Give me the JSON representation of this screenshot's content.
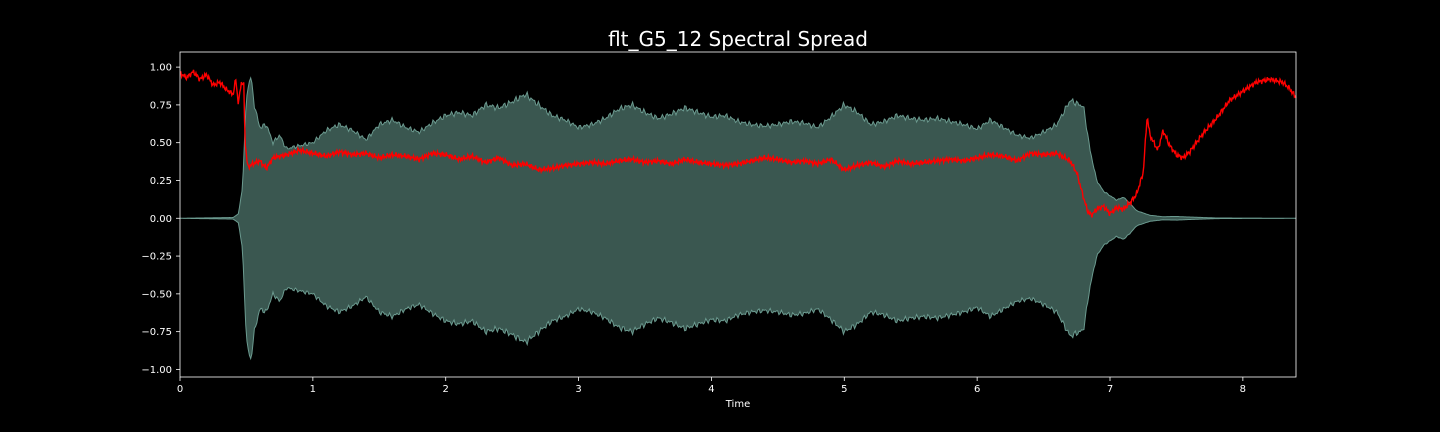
{
  "chart_data": {
    "type": "area",
    "title": "flt_G5_12 Spectral Spread",
    "xlabel": "Time",
    "ylabel": "",
    "xlim": [
      0,
      8.4
    ],
    "ylim": [
      -1.05,
      1.1
    ],
    "grid": false,
    "legend": "none",
    "x_ticks": [
      {
        "value": 0,
        "label": "0"
      },
      {
        "value": 1,
        "label": "1"
      },
      {
        "value": 2,
        "label": "2"
      },
      {
        "value": 3,
        "label": "3"
      },
      {
        "value": 4,
        "label": "4"
      },
      {
        "value": 5,
        "label": "5"
      },
      {
        "value": 6,
        "label": "6"
      },
      {
        "value": 7,
        "label": "7"
      },
      {
        "value": 8,
        "label": "8"
      }
    ],
    "y_ticks": [
      {
        "value": 1.0,
        "label": "1.00"
      },
      {
        "value": 0.75,
        "label": "0.75"
      },
      {
        "value": 0.5,
        "label": "0.50"
      },
      {
        "value": 0.25,
        "label": "0.25"
      },
      {
        "value": 0.0,
        "label": "0.00"
      },
      {
        "value": -0.25,
        "label": "−0.25"
      },
      {
        "value": -0.5,
        "label": "−0.50"
      },
      {
        "value": -0.75,
        "label": "−0.75"
      },
      {
        "value": -1.0,
        "label": "−1.00"
      }
    ],
    "series": [
      {
        "kind": "waveform-envelope",
        "color": "#3a5750",
        "edge_color": "#6b9a8f",
        "x": [
          0,
          0.4,
          0.44,
          0.47,
          0.5,
          0.53,
          0.56,
          0.6,
          0.65,
          0.7,
          0.75,
          0.8,
          0.9,
          1.0,
          1.1,
          1.2,
          1.3,
          1.4,
          1.5,
          1.6,
          1.7,
          1.8,
          1.9,
          2.0,
          2.1,
          2.2,
          2.3,
          2.4,
          2.5,
          2.6,
          2.7,
          2.8,
          2.9,
          3.0,
          3.1,
          3.2,
          3.3,
          3.4,
          3.5,
          3.6,
          3.7,
          3.8,
          3.9,
          4.0,
          4.1,
          4.2,
          4.3,
          4.4,
          4.5,
          4.6,
          4.7,
          4.8,
          4.9,
          5.0,
          5.1,
          5.2,
          5.3,
          5.4,
          5.5,
          5.6,
          5.7,
          5.8,
          5.9,
          6.0,
          6.1,
          6.2,
          6.3,
          6.4,
          6.5,
          6.6,
          6.7,
          6.8,
          6.85,
          6.9,
          6.95,
          7.0,
          7.05,
          7.1,
          7.15,
          7.2,
          7.3,
          7.4,
          7.5,
          7.6,
          7.8,
          8.0,
          8.2,
          8.4
        ],
        "amplitude": [
          0.0,
          0.005,
          0.03,
          0.2,
          0.8,
          0.95,
          0.75,
          0.6,
          0.62,
          0.5,
          0.55,
          0.46,
          0.48,
          0.5,
          0.58,
          0.62,
          0.58,
          0.52,
          0.62,
          0.65,
          0.6,
          0.57,
          0.63,
          0.68,
          0.7,
          0.68,
          0.75,
          0.73,
          0.77,
          0.82,
          0.75,
          0.68,
          0.65,
          0.6,
          0.62,
          0.66,
          0.72,
          0.75,
          0.7,
          0.66,
          0.69,
          0.73,
          0.7,
          0.67,
          0.68,
          0.64,
          0.62,
          0.61,
          0.62,
          0.64,
          0.63,
          0.6,
          0.67,
          0.75,
          0.7,
          0.62,
          0.64,
          0.68,
          0.66,
          0.65,
          0.66,
          0.64,
          0.62,
          0.59,
          0.65,
          0.6,
          0.55,
          0.53,
          0.57,
          0.62,
          0.78,
          0.74,
          0.45,
          0.25,
          0.18,
          0.15,
          0.12,
          0.14,
          0.1,
          0.05,
          0.02,
          0.01,
          0.012,
          0.008,
          0.002,
          0.001,
          0.0005,
          0.0
        ]
      },
      {
        "kind": "line",
        "color": "#ff0000",
        "x": [
          0,
          0.05,
          0.1,
          0.15,
          0.2,
          0.25,
          0.3,
          0.35,
          0.4,
          0.42,
          0.44,
          0.46,
          0.48,
          0.49,
          0.5,
          0.51,
          0.55,
          0.6,
          0.65,
          0.7,
          0.8,
          0.9,
          1.0,
          1.1,
          1.2,
          1.3,
          1.4,
          1.5,
          1.6,
          1.7,
          1.8,
          1.9,
          2.0,
          2.1,
          2.2,
          2.3,
          2.4,
          2.5,
          2.6,
          2.7,
          2.8,
          2.9,
          3.0,
          3.1,
          3.2,
          3.3,
          3.4,
          3.5,
          3.6,
          3.7,
          3.8,
          3.9,
          4.0,
          4.1,
          4.2,
          4.3,
          4.4,
          4.5,
          4.6,
          4.7,
          4.8,
          4.9,
          5.0,
          5.1,
          5.2,
          5.3,
          5.4,
          5.5,
          5.6,
          5.7,
          5.8,
          5.9,
          6.0,
          6.1,
          6.2,
          6.3,
          6.4,
          6.5,
          6.6,
          6.7,
          6.75,
          6.8,
          6.83,
          6.86,
          6.9,
          6.95,
          7.0,
          7.05,
          7.1,
          7.15,
          7.2,
          7.25,
          7.28,
          7.3,
          7.33,
          7.36,
          7.4,
          7.45,
          7.5,
          7.55,
          7.6,
          7.7,
          7.8,
          7.9,
          8.0,
          8.1,
          8.2,
          8.3,
          8.35,
          8.4
        ],
        "y": [
          0.96,
          0.93,
          0.97,
          0.92,
          0.95,
          0.88,
          0.9,
          0.85,
          0.82,
          0.92,
          0.75,
          0.9,
          0.88,
          0.5,
          0.42,
          0.34,
          0.36,
          0.38,
          0.33,
          0.4,
          0.42,
          0.45,
          0.43,
          0.41,
          0.44,
          0.42,
          0.43,
          0.4,
          0.42,
          0.41,
          0.39,
          0.43,
          0.42,
          0.39,
          0.41,
          0.37,
          0.4,
          0.35,
          0.36,
          0.32,
          0.33,
          0.35,
          0.36,
          0.37,
          0.36,
          0.38,
          0.39,
          0.37,
          0.38,
          0.36,
          0.39,
          0.37,
          0.36,
          0.35,
          0.36,
          0.38,
          0.4,
          0.39,
          0.37,
          0.38,
          0.36,
          0.39,
          0.32,
          0.35,
          0.37,
          0.34,
          0.38,
          0.36,
          0.37,
          0.38,
          0.39,
          0.38,
          0.4,
          0.42,
          0.41,
          0.38,
          0.43,
          0.42,
          0.43,
          0.38,
          0.3,
          0.14,
          0.05,
          0.02,
          0.06,
          0.08,
          0.03,
          0.07,
          0.06,
          0.1,
          0.16,
          0.3,
          0.68,
          0.55,
          0.5,
          0.45,
          0.58,
          0.48,
          0.42,
          0.4,
          0.44,
          0.56,
          0.66,
          0.78,
          0.84,
          0.9,
          0.92,
          0.9,
          0.86,
          0.8
        ]
      }
    ]
  }
}
